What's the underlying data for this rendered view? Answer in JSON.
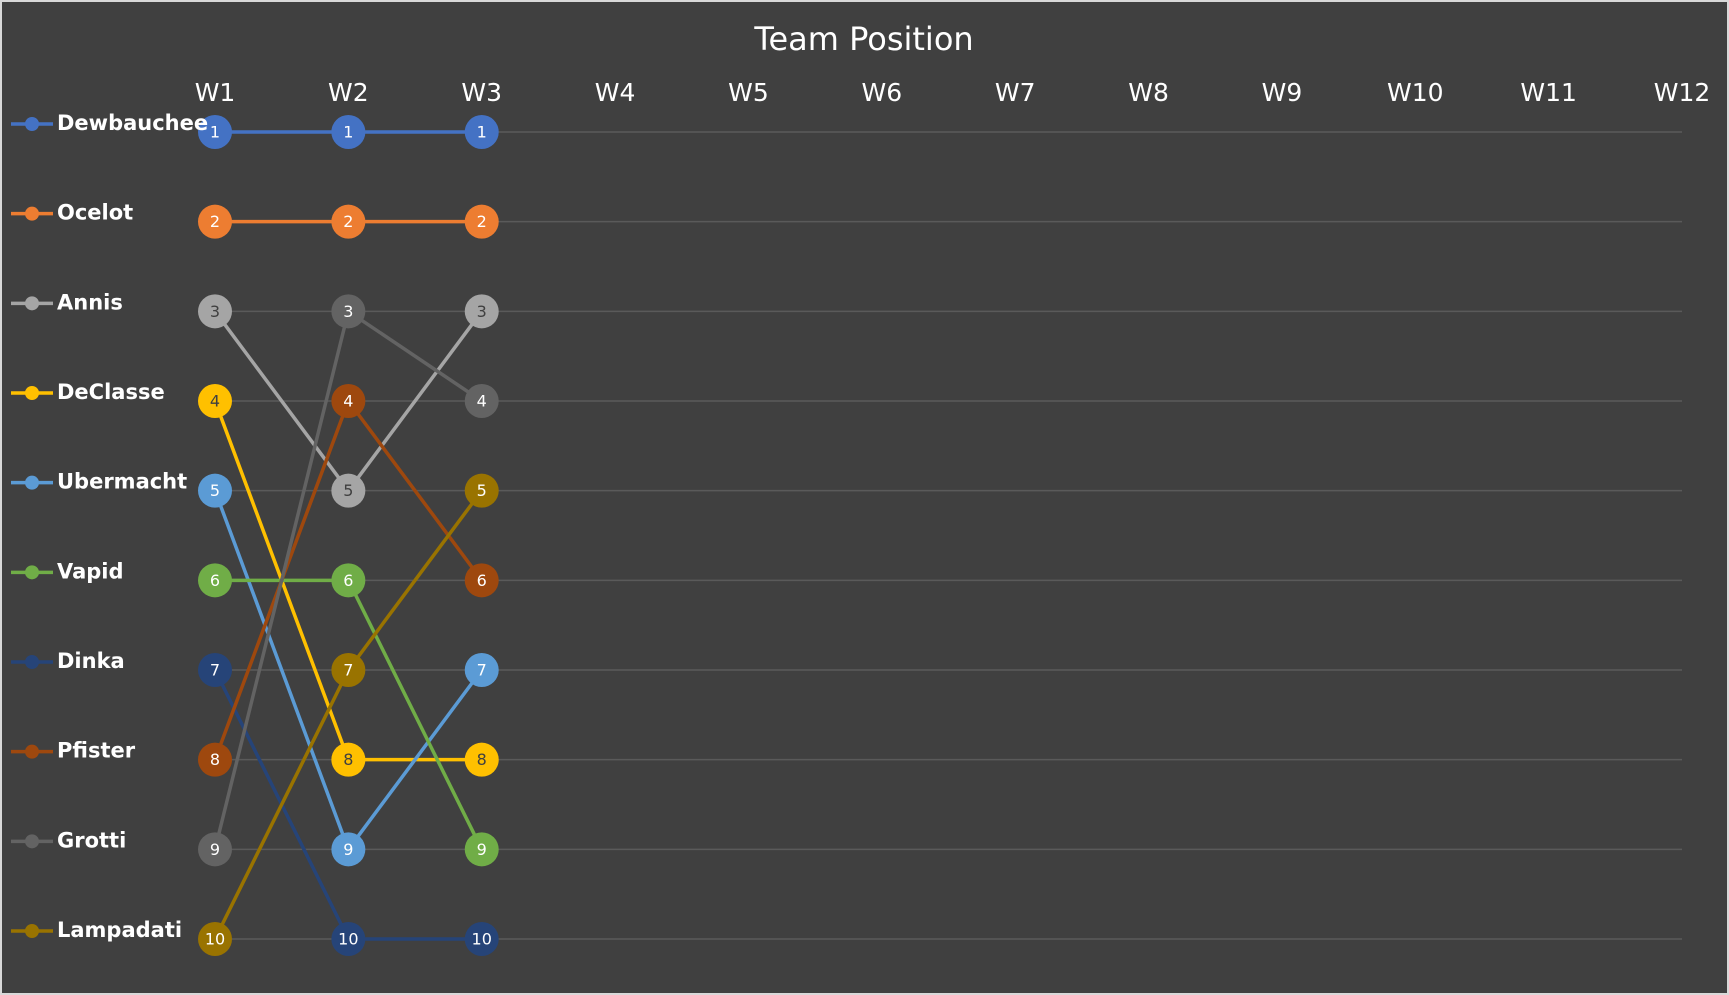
{
  "chart_data": {
    "type": "line",
    "title": "Team Position",
    "categories": [
      "W1",
      "W2",
      "W3",
      "W4",
      "W5",
      "W6",
      "W7",
      "W8",
      "W9",
      "W10",
      "W11",
      "W12"
    ],
    "series": [
      {
        "name": "Dewbauchee",
        "color": "#4472c4",
        "values": [
          1,
          1,
          1,
          null,
          null,
          null,
          null,
          null,
          null,
          null,
          null,
          null
        ]
      },
      {
        "name": "Ocelot",
        "color": "#ed7d31",
        "values": [
          2,
          2,
          2,
          null,
          null,
          null,
          null,
          null,
          null,
          null,
          null,
          null
        ]
      },
      {
        "name": "Annis",
        "color": "#a5a5a5",
        "values": [
          3,
          5,
          3,
          null,
          null,
          null,
          null,
          null,
          null,
          null,
          null,
          null
        ]
      },
      {
        "name": "DeClasse",
        "color": "#ffc000",
        "values": [
          4,
          8,
          8,
          null,
          null,
          null,
          null,
          null,
          null,
          null,
          null,
          null
        ]
      },
      {
        "name": "Ubermacht",
        "color": "#5b9bd5",
        "values": [
          5,
          9,
          7,
          null,
          null,
          null,
          null,
          null,
          null,
          null,
          null,
          null
        ]
      },
      {
        "name": "Vapid",
        "color": "#70ad47",
        "values": [
          6,
          6,
          9,
          null,
          null,
          null,
          null,
          null,
          null,
          null,
          null,
          null
        ]
      },
      {
        "name": "Dinka",
        "color": "#264478",
        "values": [
          7,
          10,
          10,
          null,
          null,
          null,
          null,
          null,
          null,
          null,
          null,
          null
        ]
      },
      {
        "name": "Pfister",
        "color": "#9e480e",
        "values": [
          8,
          4,
          6,
          null,
          null,
          null,
          null,
          null,
          null,
          null,
          null,
          null
        ]
      },
      {
        "name": "Grotti",
        "color": "#636363",
        "values": [
          9,
          3,
          4,
          null,
          null,
          null,
          null,
          null,
          null,
          null,
          null,
          null
        ]
      },
      {
        "name": "Lampadati",
        "color": "#997300",
        "values": [
          10,
          7,
          5,
          null,
          null,
          null,
          null,
          null,
          null,
          null,
          null,
          null
        ]
      }
    ],
    "ylim": [
      1,
      10
    ],
    "y_reversed": true,
    "grid": true,
    "legend": "left",
    "data_labels": true
  }
}
